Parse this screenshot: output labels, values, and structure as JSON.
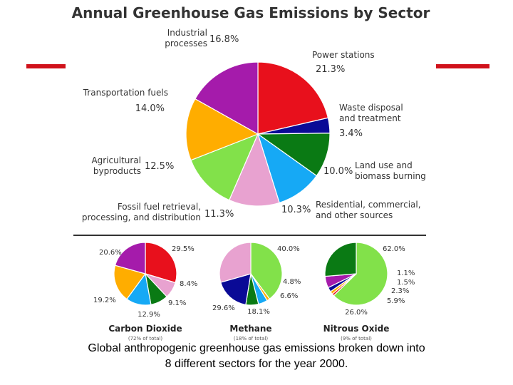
{
  "title": "Annual Greenhouse Gas Emissions by Sector",
  "caption": {
    "line1": "Global anthropogenic greenhouse gas emissions broken down into",
    "line2": "8 different sectors for the year 2000."
  },
  "colors": {
    "red": "#e8101c",
    "magenta": "#a51bab",
    "orange": "#ffad00",
    "lime": "#82e14a",
    "pink": "#e8a2d0",
    "cyan": "#16a9f5",
    "green": "#0a7a14",
    "navy": "#0a0a96",
    "accent_bar": "#d0121b"
  },
  "chart_data": [
    {
      "type": "pie",
      "title": "Annual Greenhouse Gas Emissions by Sector",
      "slices": [
        {
          "label": "Power stations",
          "value": 21.3,
          "value_label": "21.3%",
          "color": "#e8101c"
        },
        {
          "label": "Waste disposal and treatment",
          "value": 3.4,
          "value_label": "3.4%",
          "color": "#0a0a96"
        },
        {
          "label": "Land use and biomass burning",
          "value": 10.0,
          "value_label": "10.0%",
          "color": "#0a7a14"
        },
        {
          "label": "Residential, commercial, and other sources",
          "value": 10.3,
          "value_label": "10.3%",
          "color": "#16a9f5"
        },
        {
          "label": "Fossil fuel retrieval, processing, and distribution",
          "value": 11.3,
          "value_label": "11.3%",
          "color": "#e8a2d0"
        },
        {
          "label": "Agricultural byproducts",
          "value": 12.5,
          "value_label": "12.5%",
          "color": "#82e14a"
        },
        {
          "label": "Transportation fuels",
          "value": 14.0,
          "value_label": "14.0%",
          "color": "#ffad00"
        },
        {
          "label": "Industrial processes",
          "value": 16.8,
          "value_label": "16.8%",
          "color": "#a51bab"
        }
      ]
    },
    {
      "type": "pie",
      "title": "Carbon Dioxide",
      "subtitle": "(72% of total)",
      "slices": [
        {
          "value": 29.5,
          "value_label": "29.5%",
          "color": "#e8101c"
        },
        {
          "value": 8.4,
          "value_label": "8.4%",
          "color": "#e8a2d0"
        },
        {
          "value": 9.1,
          "value_label": "9.1%",
          "color": "#0a7a14"
        },
        {
          "value": 12.9,
          "value_label": "12.9%",
          "color": "#16a9f5"
        },
        {
          "value": 19.2,
          "value_label": "19.2%",
          "color": "#ffad00"
        },
        {
          "value": 20.6,
          "value_label": "20.6%",
          "color": "#a51bab"
        }
      ]
    },
    {
      "type": "pie",
      "title": "Methane",
      "subtitle": "(18% of total)",
      "slices": [
        {
          "value": 40.0,
          "value_label": "40.0%",
          "color": "#82e14a"
        },
        {
          "value": 1.5,
          "color": "#ffad00"
        },
        {
          "value": 4.8,
          "value_label": "4.8%",
          "color": "#16a9f5"
        },
        {
          "value": 6.6,
          "value_label": "6.6%",
          "color": "#0a7a14"
        },
        {
          "value": 18.1,
          "value_label": "18.1%",
          "color": "#0a0a96"
        },
        {
          "value": 29.6,
          "value_label": "29.6%",
          "color": "#e8a2d0"
        }
      ]
    },
    {
      "type": "pie",
      "title": "Nitrous Oxide",
      "subtitle": "(9% of total)",
      "slices": [
        {
          "value": 62.0,
          "value_label": "62.0%",
          "color": "#82e14a"
        },
        {
          "value": 1.1,
          "value_label": "1.1%",
          "color": "#e8101c"
        },
        {
          "value": 1.5,
          "value_label": "1.5%",
          "color": "#ffad00"
        },
        {
          "value": 2.3,
          "value_label": "2.3%",
          "color": "#0a0a96"
        },
        {
          "value": 5.9,
          "value_label": "5.9%",
          "color": "#a51bab"
        },
        {
          "value": 26.0,
          "value_label": "26.0%",
          "color": "#0a7a14"
        }
      ]
    }
  ]
}
